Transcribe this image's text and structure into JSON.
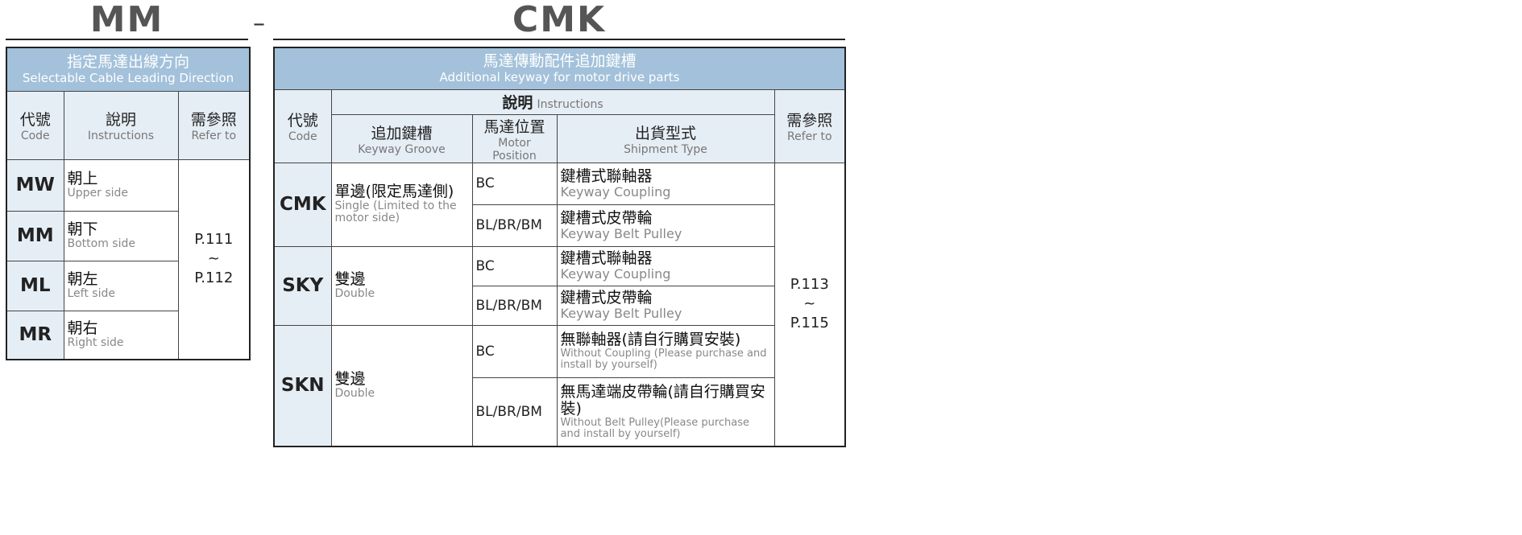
{
  "left": {
    "title": "MM",
    "header_zh": "指定馬達出線方向",
    "header_en": "Selectable Cable Leading Direction",
    "col_code_zh": "代號",
    "col_code_en": "Code",
    "col_instr_zh": "說明",
    "col_instr_en": "Instructions",
    "col_ref_zh": "需參照",
    "col_ref_en": "Refer to",
    "rows": [
      {
        "code": "MW",
        "zh": "朝上",
        "en": "Upper side"
      },
      {
        "code": "MM",
        "zh": "朝下",
        "en": "Bottom side"
      },
      {
        "code": "ML",
        "zh": "朝左",
        "en": "Left side"
      },
      {
        "code": "MR",
        "zh": "朝右",
        "en": "Right side"
      }
    ],
    "ref": {
      "from": "P.111",
      "sep": "~",
      "to": "P.112"
    }
  },
  "separator": "–",
  "right": {
    "title": "CMK",
    "header_zh": "馬達傳動配件追加鍵槽",
    "header_en": "Additional keyway for motor drive parts",
    "col_code_zh": "代號",
    "col_code_en": "Code",
    "col_instr_zh": "說明",
    "col_instr_en": "Instructions",
    "col_groove_zh": "追加鍵槽",
    "col_groove_en": "Keyway Groove",
    "col_pos_zh": "馬達位置",
    "col_pos_en": "Motor Position",
    "col_ship_zh": "出貨型式",
    "col_ship_en": "Shipment Type",
    "col_ref_zh": "需參照",
    "col_ref_en": "Refer to",
    "groups": [
      {
        "code": "CMK",
        "groove_zh": "單邊(限定馬達側)",
        "groove_en": "Single (Limited to the motor side)",
        "rows": [
          {
            "pos": "BC",
            "zh": "鍵槽式聯軸器",
            "en": "Keyway Coupling"
          },
          {
            "pos": "BL/BR/BM",
            "zh": "鍵槽式皮帶輪",
            "en": "Keyway Belt Pulley"
          }
        ]
      },
      {
        "code": "SKY",
        "groove_zh": "雙邊",
        "groove_en": "Double",
        "rows": [
          {
            "pos": "BC",
            "zh": "鍵槽式聯軸器",
            "en": "Keyway Coupling"
          },
          {
            "pos": "BL/BR/BM",
            "zh": "鍵槽式皮帶輪",
            "en": "Keyway Belt Pulley"
          }
        ]
      },
      {
        "code": "SKN",
        "groove_zh": "雙邊",
        "groove_en": "Double",
        "rows": [
          {
            "pos": "BC",
            "zh": "無聯軸器(請自行購買安裝)",
            "en": "Without Coupling (Please purchase and install by yourself)"
          },
          {
            "pos": "BL/BR/BM",
            "zh": "無馬達端皮帶輪(請自行購買安裝)",
            "en": "Without Belt Pulley(Please purchase and install by yourself)"
          }
        ]
      }
    ],
    "ref": {
      "from": "P.113",
      "sep": "~",
      "to": "P.115"
    }
  }
}
